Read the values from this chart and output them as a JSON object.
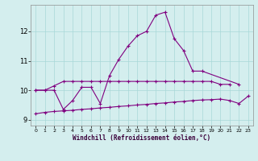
{
  "series1_x": [
    0,
    1,
    2,
    3,
    4,
    5,
    6,
    7,
    8,
    9,
    10,
    11,
    12,
    13,
    14,
    15,
    16,
    17,
    18,
    19,
    20,
    21
  ],
  "series1_y": [
    10.0,
    10.0,
    10.15,
    10.3,
    10.3,
    10.3,
    10.3,
    10.3,
    10.3,
    10.3,
    10.3,
    10.3,
    10.3,
    10.3,
    10.3,
    10.3,
    10.3,
    10.3,
    10.3,
    10.3,
    10.2,
    10.2
  ],
  "series2_x": [
    0,
    1,
    2,
    3,
    4,
    5,
    6,
    7,
    8,
    9,
    10,
    11,
    12,
    13,
    14,
    15,
    16,
    17,
    18,
    22
  ],
  "series2_y": [
    10.0,
    10.0,
    10.0,
    9.35,
    9.65,
    10.1,
    10.1,
    9.55,
    10.5,
    11.05,
    11.5,
    11.85,
    12.0,
    12.55,
    12.65,
    11.75,
    11.35,
    10.65,
    10.65,
    10.2
  ],
  "series3_x": [
    0,
    1,
    2,
    3,
    4,
    5,
    6,
    7,
    8,
    9,
    10,
    11,
    12,
    13,
    14,
    15,
    16,
    17,
    18,
    19,
    20,
    21,
    22,
    23
  ],
  "series3_y": [
    9.2,
    9.25,
    9.28,
    9.3,
    9.32,
    9.35,
    9.37,
    9.4,
    9.42,
    9.45,
    9.47,
    9.5,
    9.52,
    9.55,
    9.57,
    9.6,
    9.62,
    9.65,
    9.67,
    9.68,
    9.7,
    9.65,
    9.55,
    9.8
  ],
  "xlabel": "Windchill (Refroidissement éolien,°C)",
  "ylim": [
    8.8,
    12.9
  ],
  "xlim": [
    -0.5,
    23.5
  ],
  "yticks": [
    9,
    10,
    11,
    12
  ],
  "xticks": [
    0,
    1,
    2,
    3,
    4,
    5,
    6,
    7,
    8,
    9,
    10,
    11,
    12,
    13,
    14,
    15,
    16,
    17,
    18,
    19,
    20,
    21,
    22,
    23
  ],
  "line_color": "#800080",
  "bg_color": "#d4eeee",
  "grid_color": "#a8d8d8"
}
